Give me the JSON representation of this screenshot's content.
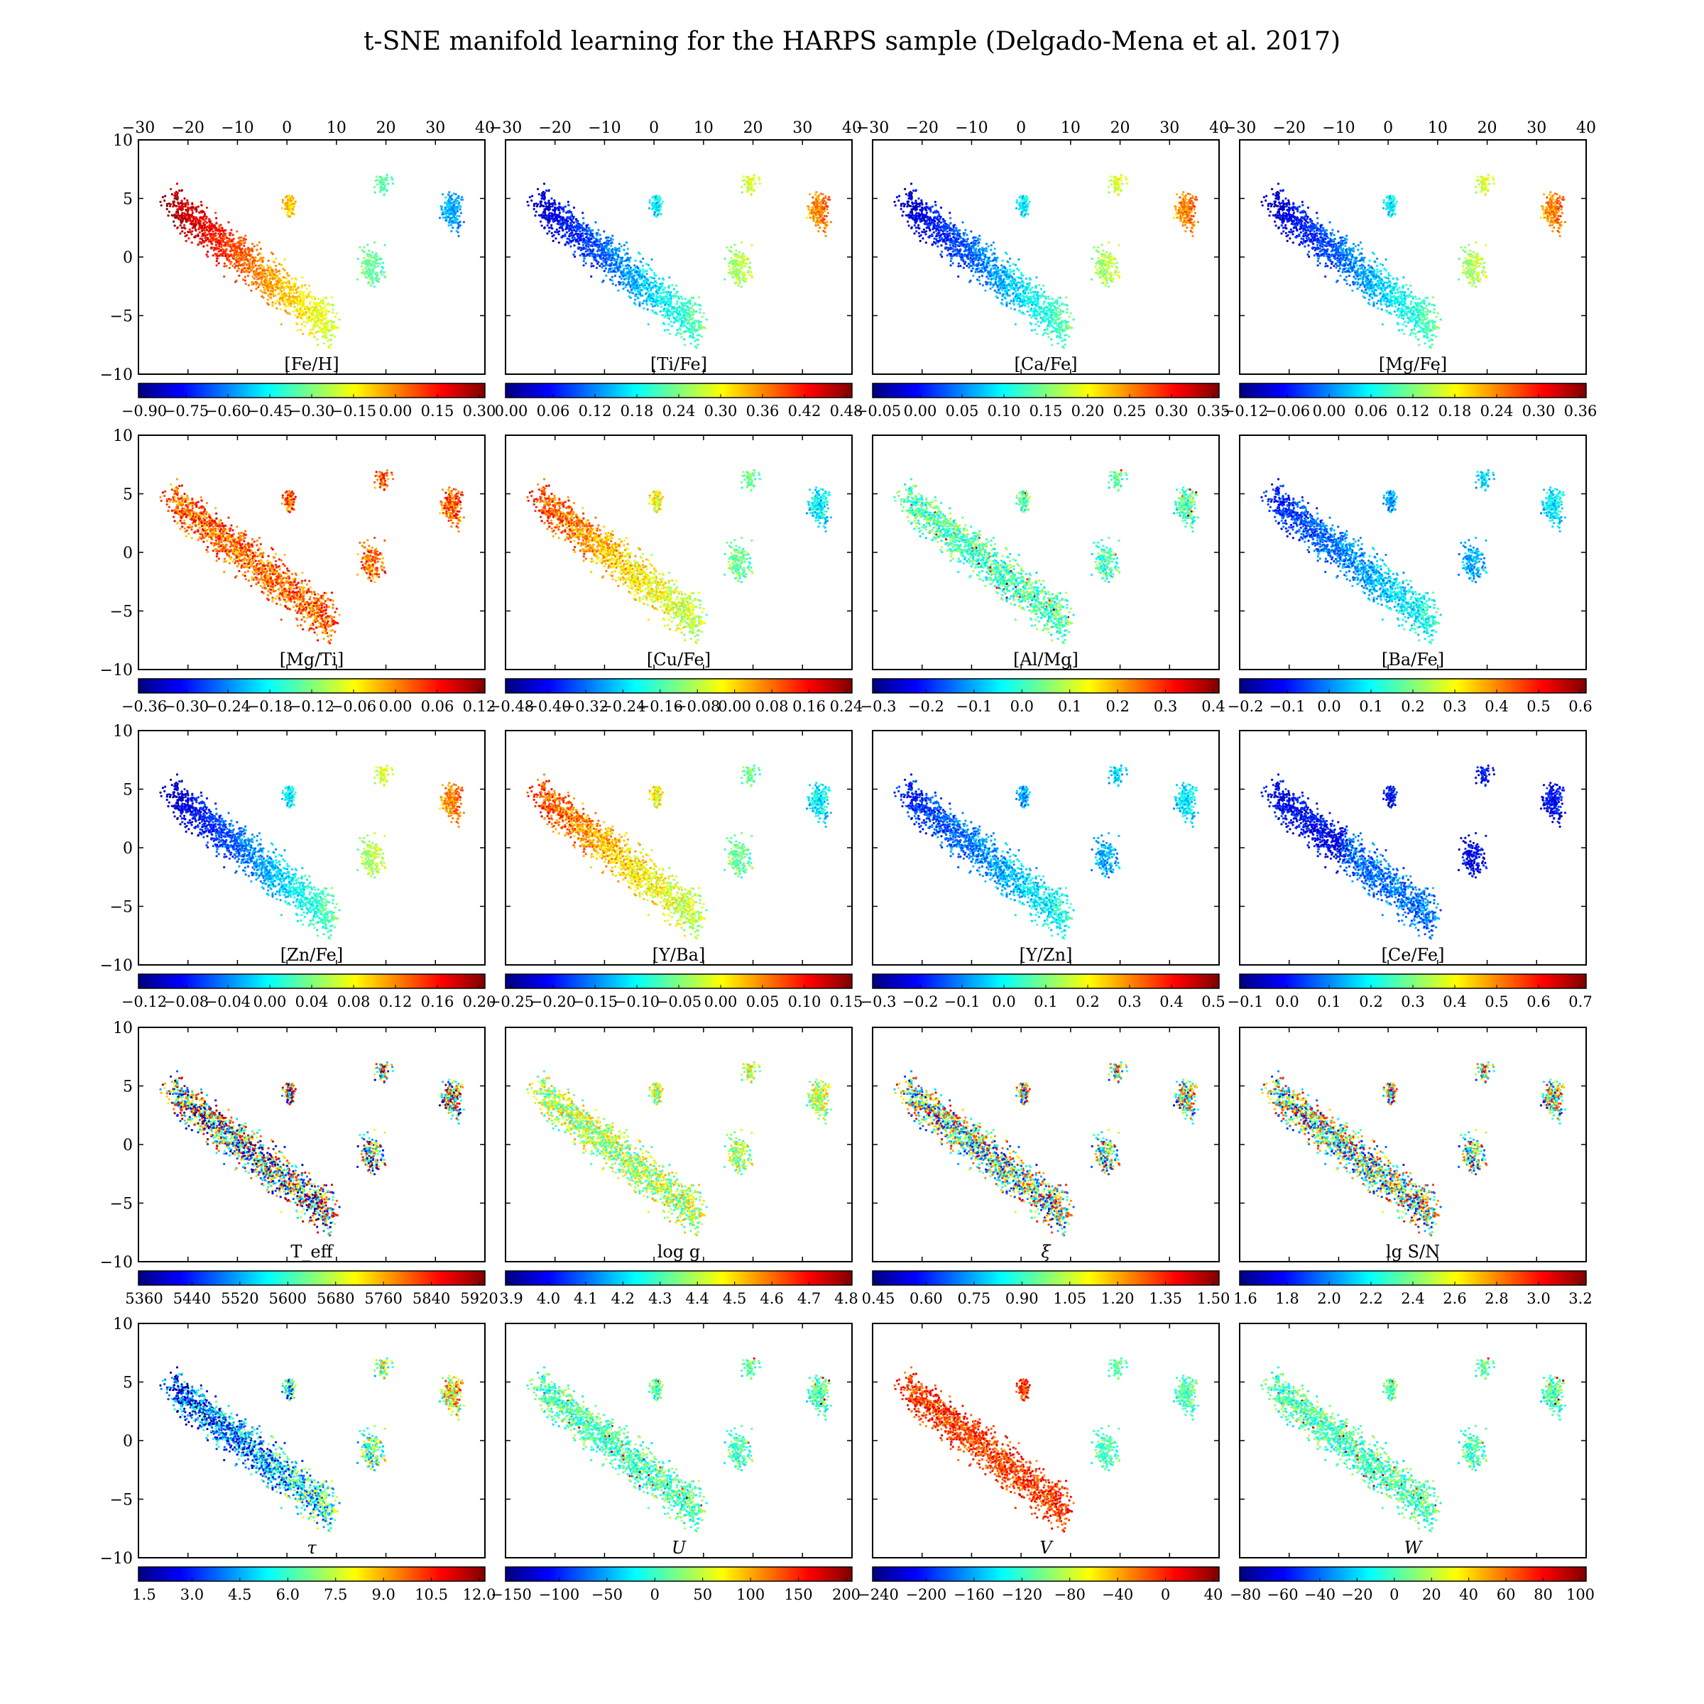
{
  "title": "t-SNE manifold learning for the HARPS sample (Delgado-Mena et al. 2017)",
  "colors": {
    "colormap": "jet",
    "stops": [
      "#00007f",
      "#0000ff",
      "#007fff",
      "#00ffff",
      "#7fff7f",
      "#ffff00",
      "#ff7f00",
      "#ff0000",
      "#7f0000"
    ]
  },
  "chart_data": [
    {
      "type": "scatter",
      "row": 0,
      "col": 0,
      "label": "[Fe/H]",
      "xlim": [
        -30,
        40
      ],
      "ylim": [
        -10,
        10
      ],
      "xticks": [
        "−30",
        "−20",
        "−10",
        "0",
        "10",
        "20",
        "30",
        "40"
      ],
      "yticks": [
        "10",
        "5",
        "0",
        "−5",
        "−10"
      ],
      "color_field": "x_gradient_reversed",
      "colorbar": {
        "ticks": [
          "−0.90",
          "−0.75",
          "−0.60",
          "−0.45",
          "−0.30",
          "−0.15",
          "0.00",
          "0.15",
          "0.30"
        ]
      }
    },
    {
      "type": "scatter",
      "row": 0,
      "col": 1,
      "label": "[Ti/Fe]",
      "xlim": [
        -30,
        40
      ],
      "ylim": [
        -10,
        10
      ],
      "xticks": [
        "−30",
        "−20",
        "−10",
        "0",
        "10",
        "20",
        "30",
        "40"
      ],
      "color_field": "x_gradient",
      "colorbar": {
        "ticks": [
          "0.00",
          "0.06",
          "0.12",
          "0.18",
          "0.24",
          "0.30",
          "0.36",
          "0.42",
          "0.48"
        ]
      }
    },
    {
      "type": "scatter",
      "row": 0,
      "col": 2,
      "label": "[Ca/Fe]",
      "xlim": [
        -30,
        40
      ],
      "ylim": [
        -10,
        10
      ],
      "xticks": [
        "−30",
        "−20",
        "−10",
        "0",
        "10",
        "20",
        "30",
        "40"
      ],
      "color_field": "x_gradient",
      "colorbar": {
        "ticks": [
          "−0.05",
          "0.00",
          "0.05",
          "0.10",
          "0.15",
          "0.20",
          "0.25",
          "0.30",
          "0.35"
        ]
      }
    },
    {
      "type": "scatter",
      "row": 0,
      "col": 3,
      "label": "[Mg/Fe]",
      "xlim": [
        -30,
        40
      ],
      "ylim": [
        -10,
        10
      ],
      "xticks": [
        "−30",
        "−20",
        "−10",
        "0",
        "10",
        "20",
        "30",
        "40"
      ],
      "color_field": "x_gradient",
      "colorbar": {
        "ticks": [
          "−0.12",
          "−0.06",
          "0.00",
          "0.06",
          "0.12",
          "0.18",
          "0.24",
          "0.30",
          "0.36"
        ]
      }
    },
    {
      "type": "scatter",
      "row": 1,
      "col": 0,
      "label": "[Mg/Ti]",
      "xlim": [
        -30,
        40
      ],
      "ylim": [
        -10,
        10
      ],
      "yticks": [
        "10",
        "5",
        "0",
        "−5",
        "−10"
      ],
      "color_field": "uniform_high",
      "colorbar": {
        "ticks": [
          "−0.36",
          "−0.30",
          "−0.24",
          "−0.18",
          "−0.12",
          "−0.06",
          "0.00",
          "0.06",
          "0.12"
        ]
      }
    },
    {
      "type": "scatter",
      "row": 1,
      "col": 1,
      "label": "[Cu/Fe]",
      "xlim": [
        -30,
        40
      ],
      "ylim": [
        -10,
        10
      ],
      "color_field": "x_gradient_reversed_soft",
      "colorbar": {
        "ticks": [
          "−0.48",
          "−0.40",
          "−0.32",
          "−0.24",
          "−0.16",
          "−0.08",
          "0.00",
          "0.08",
          "0.16",
          "0.24"
        ]
      }
    },
    {
      "type": "scatter",
      "row": 1,
      "col": 2,
      "label": "[Al/Mg]",
      "xlim": [
        -30,
        40
      ],
      "ylim": [
        -10,
        10
      ],
      "color_field": "uniform_mid",
      "colorbar": {
        "ticks": [
          "−0.3",
          "−0.2",
          "−0.1",
          "0.0",
          "0.1",
          "0.2",
          "0.3",
          "0.4"
        ]
      }
    },
    {
      "type": "scatter",
      "row": 1,
      "col": 3,
      "label": "[Ba/Fe]",
      "xlim": [
        -30,
        40
      ],
      "ylim": [
        -10,
        10
      ],
      "color_field": "uniform_low_up",
      "colorbar": {
        "ticks": [
          "−0.2",
          "−0.1",
          "0.0",
          "0.1",
          "0.2",
          "0.3",
          "0.4",
          "0.5",
          "0.6"
        ]
      }
    },
    {
      "type": "scatter",
      "row": 2,
      "col": 0,
      "label": "[Zn/Fe]",
      "xlim": [
        -30,
        40
      ],
      "ylim": [
        -10,
        10
      ],
      "yticks": [
        "10",
        "5",
        "0",
        "−5",
        "−10"
      ],
      "color_field": "x_gradient",
      "colorbar": {
        "ticks": [
          "−0.12",
          "−0.08",
          "−0.04",
          "0.00",
          "0.04",
          "0.08",
          "0.12",
          "0.16",
          "0.20"
        ]
      }
    },
    {
      "type": "scatter",
      "row": 2,
      "col": 1,
      "label": "[Y/Ba]",
      "xlim": [
        -30,
        40
      ],
      "ylim": [
        -10,
        10
      ],
      "color_field": "x_gradient_reversed_soft",
      "colorbar": {
        "ticks": [
          "−0.25",
          "−0.20",
          "−0.15",
          "−0.10",
          "−0.05",
          "0.00",
          "0.05",
          "0.10",
          "0.15"
        ]
      }
    },
    {
      "type": "scatter",
      "row": 2,
      "col": 2,
      "label": "[Y/Zn]",
      "xlim": [
        -30,
        40
      ],
      "ylim": [
        -10,
        10
      ],
      "color_field": "uniform_low_up",
      "colorbar": {
        "ticks": [
          "−0.3",
          "−0.2",
          "−0.1",
          "0.0",
          "0.1",
          "0.2",
          "0.3",
          "0.4",
          "0.5"
        ]
      }
    },
    {
      "type": "scatter",
      "row": 2,
      "col": 3,
      "label": "[Ce/Fe]",
      "xlim": [
        -30,
        40
      ],
      "ylim": [
        -10,
        10
      ],
      "color_field": "uniform_low",
      "colorbar": {
        "ticks": [
          "−0.1",
          "0.0",
          "0.1",
          "0.2",
          "0.3",
          "0.4",
          "0.5",
          "0.6",
          "0.7"
        ]
      }
    },
    {
      "type": "scatter",
      "row": 3,
      "col": 0,
      "label": "T_eff",
      "xlim": [
        -30,
        40
      ],
      "ylim": [
        -10,
        10
      ],
      "yticks": [
        "10",
        "5",
        "0",
        "−5",
        "−10"
      ],
      "color_field": "random",
      "colorbar": {
        "ticks": [
          "5360",
          "5440",
          "5520",
          "5600",
          "5680",
          "5760",
          "5840",
          "5920"
        ]
      }
    },
    {
      "type": "scatter",
      "row": 3,
      "col": 1,
      "label": "log g",
      "xlim": [
        -30,
        40
      ],
      "ylim": [
        -10,
        10
      ],
      "color_field": "uniform_mid_high",
      "colorbar": {
        "ticks": [
          "3.9",
          "4.0",
          "4.1",
          "4.2",
          "4.3",
          "4.4",
          "4.5",
          "4.6",
          "4.7",
          "4.8"
        ]
      }
    },
    {
      "type": "scatter",
      "row": 3,
      "col": 2,
      "label": "ξ",
      "xlim": [
        -30,
        40
      ],
      "ylim": [
        -10,
        10
      ],
      "color_field": "random_mid",
      "colorbar": {
        "ticks": [
          "0.45",
          "0.60",
          "0.75",
          "0.90",
          "1.05",
          "1.20",
          "1.35",
          "1.50"
        ]
      }
    },
    {
      "type": "scatter",
      "row": 3,
      "col": 3,
      "label": "lg S/N",
      "xlim": [
        -30,
        40
      ],
      "ylim": [
        -10,
        10
      ],
      "color_field": "random_mid",
      "colorbar": {
        "ticks": [
          "1.6",
          "1.8",
          "2.0",
          "2.2",
          "2.4",
          "2.6",
          "2.8",
          "3.0",
          "3.2"
        ]
      }
    },
    {
      "type": "scatter",
      "row": 4,
      "col": 0,
      "label": "τ",
      "xlim": [
        -30,
        40
      ],
      "ylim": [
        -10,
        10
      ],
      "yticks": [
        "10",
        "5",
        "0",
        "−5",
        "−10"
      ],
      "color_field": "x_gradient_soft",
      "colorbar": {
        "ticks": [
          "1.5",
          "3.0",
          "4.5",
          "6.0",
          "7.5",
          "9.0",
          "10.5",
          "12.0"
        ]
      }
    },
    {
      "type": "scatter",
      "row": 4,
      "col": 1,
      "label": "U",
      "xlim": [
        -30,
        40
      ],
      "ylim": [
        -10,
        10
      ],
      "color_field": "uniform_mid",
      "colorbar": {
        "ticks": [
          "−150",
          "−100",
          "−50",
          "0",
          "50",
          "100",
          "150",
          "200"
        ]
      }
    },
    {
      "type": "scatter",
      "row": 4,
      "col": 2,
      "label": "V",
      "xlim": [
        -30,
        40
      ],
      "ylim": [
        -10,
        10
      ],
      "color_field": "uniform_high_v",
      "colorbar": {
        "ticks": [
          "−240",
          "−200",
          "−160",
          "−120",
          "−80",
          "−40",
          "0",
          "40"
        ]
      }
    },
    {
      "type": "scatter",
      "row": 4,
      "col": 3,
      "label": "W",
      "xlim": [
        -30,
        40
      ],
      "ylim": [
        -10,
        10
      ],
      "color_field": "uniform_mid",
      "colorbar": {
        "ticks": [
          "−80",
          "−60",
          "−40",
          "−20",
          "0",
          "20",
          "40",
          "60",
          "80",
          "100"
        ]
      }
    }
  ]
}
